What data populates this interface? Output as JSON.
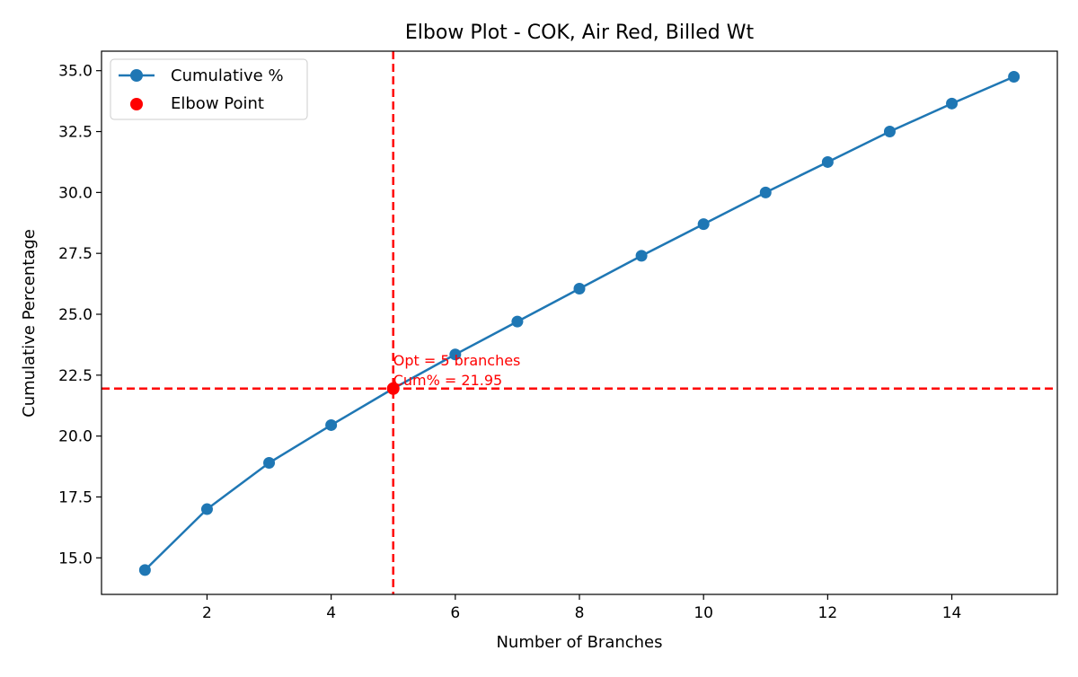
{
  "chart_data": {
    "type": "line",
    "title": "Elbow Plot - COK, Air Red, Billed Wt",
    "xlabel": "Number of Branches",
    "ylabel": "Cumulative Percentage",
    "xlim": [
      0.3,
      15.7
    ],
    "ylim": [
      13.5,
      35.8
    ],
    "x_ticks": [
      2,
      4,
      6,
      8,
      10,
      12,
      14
    ],
    "y_ticks": [
      15.0,
      17.5,
      20.0,
      22.5,
      25.0,
      27.5,
      30.0,
      32.5,
      35.0
    ],
    "x_tick_labels": [
      "2",
      "4",
      "6",
      "8",
      "10",
      "12",
      "14"
    ],
    "y_tick_labels": [
      "15.0",
      "17.5",
      "20.0",
      "22.5",
      "25.0",
      "27.5",
      "30.0",
      "32.5",
      "35.0"
    ],
    "grid": false,
    "legend_position": "top-left",
    "series": [
      {
        "name": "Cumulative %",
        "color": "#1f77b4",
        "marker": "circle",
        "x": [
          1,
          2,
          3,
          4,
          5,
          6,
          7,
          8,
          9,
          10,
          11,
          12,
          13,
          14,
          15
        ],
        "y": [
          14.5,
          17.0,
          18.9,
          20.45,
          21.95,
          23.35,
          24.7,
          26.05,
          27.4,
          28.7,
          30.0,
          31.25,
          32.5,
          33.65,
          34.75
        ]
      }
    ],
    "elbow_point": {
      "name": "Elbow Point",
      "color": "#ff0000",
      "x": 5,
      "y": 21.95
    },
    "annotation": {
      "line1": "Opt = 5 branches",
      "line2": "Cum% = 21.95",
      "color": "#ff0000"
    },
    "reference_lines": {
      "vertical_x": 5,
      "horizontal_y": 21.95,
      "color": "#ff0000",
      "style": "dashed"
    }
  }
}
